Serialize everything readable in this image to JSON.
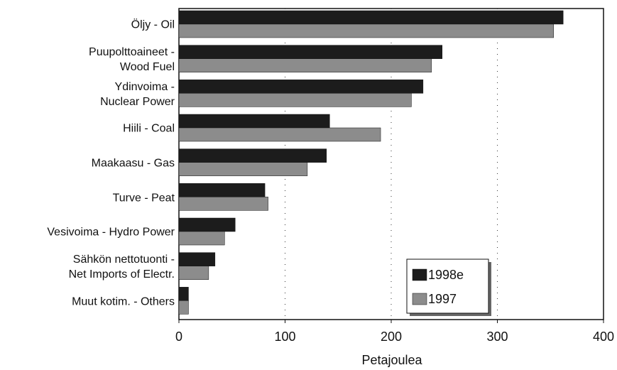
{
  "chart_data": {
    "type": "barh",
    "categories": [
      "Öljy - Oil",
      "Puupolttoaineet -\nWood Fuel",
      "Ydinvoima -\nNuclear Power",
      "Hiili - Coal",
      "Maakaasu - Gas",
      "Turve - Peat",
      "Vesivoima - Hydro Power",
      "Sähkön nettotuonti -\nNet Imports of Electr.",
      "Muut kotim. - Others"
    ],
    "series": [
      {
        "name": "1998e",
        "color": "#1c1c1c",
        "values": [
          362,
          248,
          230,
          142,
          139,
          81,
          53,
          34,
          9
        ]
      },
      {
        "name": "1997",
        "color": "#8c8c8c",
        "values": [
          353,
          238,
          219,
          190,
          121,
          84,
          43,
          28,
          9
        ]
      }
    ],
    "x_label": "Petajoulea",
    "xlim": [
      0,
      400
    ],
    "xticks": [
      0,
      100,
      200,
      300,
      400
    ],
    "grid": true,
    "legend": "lower right"
  }
}
